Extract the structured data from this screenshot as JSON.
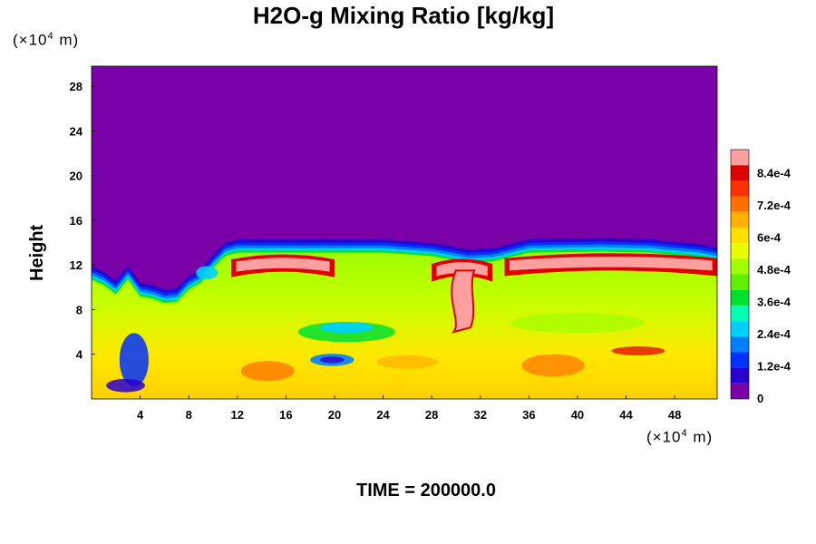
{
  "chart_data": {
    "type": "heatmap",
    "title": "H2O-g Mixing Ratio [kg/kg]",
    "ylabel": "Height",
    "xlabel": "",
    "x_unit": {
      "prefix": "(×10",
      "exp": "4",
      "suffix": " m)"
    },
    "y_unit": {
      "prefix": "(×10",
      "exp": "4",
      "suffix": " m)"
    },
    "x_ticks": [
      4,
      8,
      12,
      16,
      20,
      24,
      28,
      32,
      36,
      40,
      44,
      48
    ],
    "y_ticks": [
      4,
      8,
      12,
      16,
      20,
      24,
      28
    ],
    "xlim": [
      0,
      51.5
    ],
    "ylim": [
      0,
      29.8
    ],
    "colorbar": {
      "labels": [
        "0",
        "1.2e-4",
        "2.4e-4",
        "3.6e-4",
        "4.8e-4",
        "6e-4",
        "7.2e-4",
        "8.4e-4"
      ],
      "values": [
        0,
        0.00012,
        0.00024,
        0.00036,
        0.00048,
        0.0006,
        0.00072,
        0.00084
      ],
      "range": [
        0,
        0.00093
      ],
      "colors": [
        "#7a00a8",
        "#2a00d0",
        "#0030ff",
        "#0080ff",
        "#00d0ff",
        "#00ffb0",
        "#00e030",
        "#60f000",
        "#a0ff00",
        "#e8ff00",
        "#ffe000",
        "#ffb000",
        "#ff7000",
        "#ff3000",
        "#e00000",
        "#ffa0a0"
      ]
    },
    "boundary_top_km": [
      [
        0,
        10.5
      ],
      [
        1,
        10
      ],
      [
        2,
        9.2
      ],
      [
        3,
        10.5
      ],
      [
        4,
        9
      ],
      [
        5,
        8.8
      ],
      [
        6,
        8.4
      ],
      [
        7,
        8.5
      ],
      [
        8,
        9.6
      ],
      [
        9,
        10.2
      ],
      [
        10,
        11.5
      ],
      [
        11,
        12.6
      ],
      [
        12,
        12.9
      ],
      [
        14,
        12.9
      ],
      [
        18,
        12.9
      ],
      [
        24,
        12.9
      ],
      [
        28,
        12.6
      ],
      [
        31,
        12.0
      ],
      [
        33,
        12.1
      ],
      [
        36,
        12.9
      ],
      [
        42,
        13.0
      ],
      [
        46,
        12.9
      ],
      [
        50,
        12.5
      ],
      [
        51.5,
        12.2
      ]
    ]
  },
  "time_label": "TIME = 200000.0"
}
